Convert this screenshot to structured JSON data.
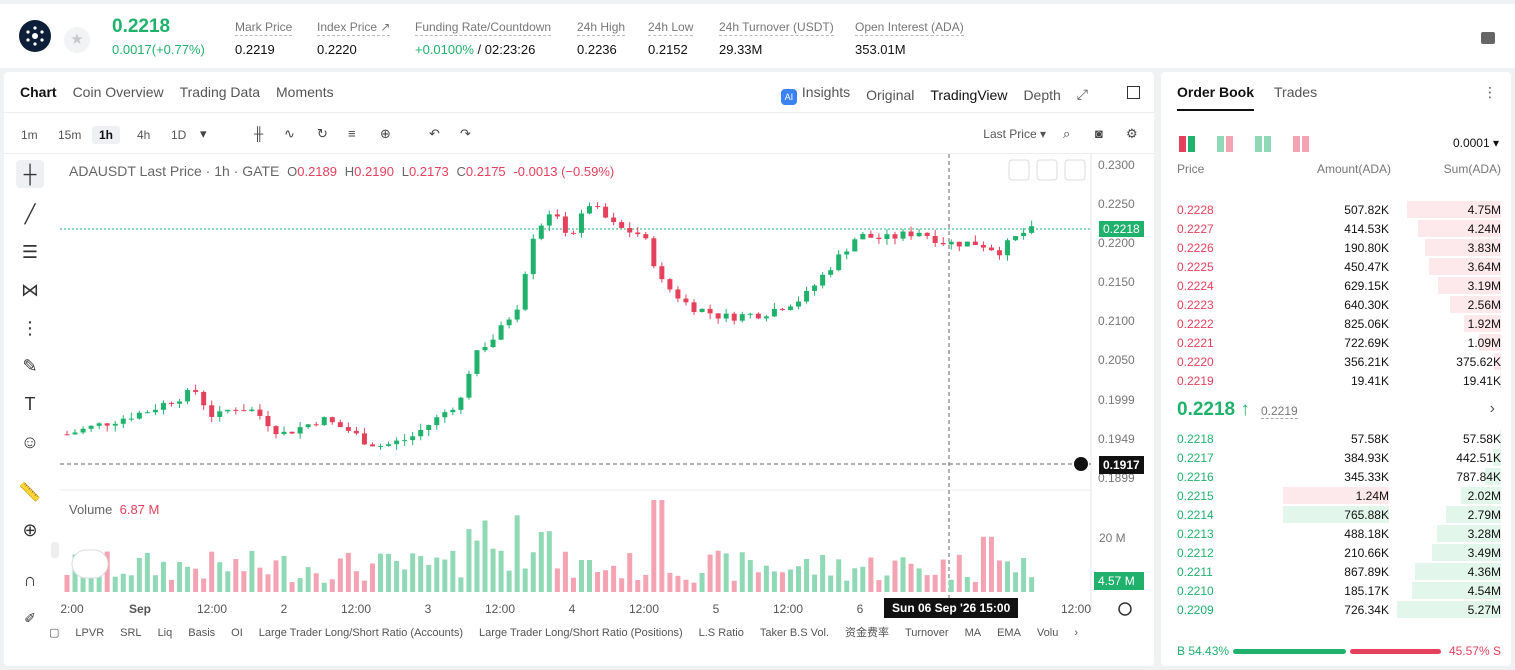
{
  "header": {
    "last_price": "0.2218",
    "change": "0.0017(+0.77%)",
    "stats": [
      {
        "label": "Mark Price",
        "value": "0.2219"
      },
      {
        "label": "Index Price ↗",
        "value": "0.2220"
      },
      {
        "label": "Funding Rate/Countdown",
        "value": "+0.0100%",
        "value2": " / 02:23:26"
      },
      {
        "label": "24h High",
        "value": "0.2236"
      },
      {
        "label": "24h Low",
        "value": "0.2152"
      },
      {
        "label": "24h Turnover (USDT)",
        "value": "29.33M"
      },
      {
        "label": "Open Interest (ADA)",
        "value": "353.01M"
      }
    ]
  },
  "chart_tabs": [
    "Chart",
    "Coin Overview",
    "Trading Data",
    "Moments"
  ],
  "chart_views": {
    "ai": "AI",
    "insights": "Insights",
    "original": "Original",
    "tradingview": "TradingView",
    "depth": "Depth"
  },
  "intervals": [
    "1m",
    "15m",
    "1h",
    "4h",
    "1D"
  ],
  "last_price_select": "Last Price",
  "legend": {
    "symbol": "ADAUSDT Last Price · 1h · GATE",
    "o_label": "O",
    "o": "0.2189",
    "h_label": "H",
    "h": "0.2190",
    "l_label": "L",
    "l": "0.2173",
    "c_label": "C",
    "c": "0.2175",
    "chg": "-0.0013 (−0.59%)"
  },
  "volume": {
    "label": "Volume",
    "value": "6.87 M",
    "axis_label": "20 M",
    "badge": "4.57 M"
  },
  "price_axis": [
    "0.2300",
    "0.2250",
    "0.2200",
    "0.2150",
    "0.2100",
    "0.2050",
    "0.1999",
    "0.1949",
    "0.1899"
  ],
  "price_badge": "0.2218",
  "cross_badge": "0.1917",
  "time_axis": [
    "2:00",
    "Sep",
    "12:00",
    "2",
    "12:00",
    "3",
    "12:00",
    "4",
    "12:00",
    "5",
    "12:00",
    "6",
    "12:00"
  ],
  "crosshair_time": "Sun 06 Sep '26   15:00",
  "bottom_indicators": [
    "LPVR",
    "SRL",
    "Liq",
    "Basis",
    "OI",
    "Large Trader Long/Short Ratio (Accounts)",
    "Large Trader Long/Short Ratio (Positions)",
    "L.S Ratio",
    "Taker B.S Vol.",
    "资金费率",
    "Turnover",
    "MA",
    "EMA",
    "Volu"
  ],
  "orderbook": {
    "tabs": [
      "Order Book",
      "Trades"
    ],
    "precision": "0.0001",
    "headers": {
      "price": "Price",
      "amount": "Amount(ADA)",
      "sum": "Sum(ADA)"
    },
    "asks": [
      {
        "price": "0.2228",
        "amount": "507.82K",
        "sum": "4.75M",
        "depth": 0.9
      },
      {
        "price": "0.2227",
        "amount": "414.53K",
        "sum": "4.24M",
        "depth": 0.8
      },
      {
        "price": "0.2226",
        "amount": "190.80K",
        "sum": "3.83M",
        "depth": 0.73
      },
      {
        "price": "0.2225",
        "amount": "450.47K",
        "sum": "3.64M",
        "depth": 0.69
      },
      {
        "price": "0.2224",
        "amount": "629.15K",
        "sum": "3.19M",
        "depth": 0.61
      },
      {
        "price": "0.2223",
        "amount": "640.30K",
        "sum": "2.56M",
        "depth": 0.49
      },
      {
        "price": "0.2222",
        "amount": "825.06K",
        "sum": "1.92M",
        "depth": 0.36
      },
      {
        "price": "0.2221",
        "amount": "722.69K",
        "sum": "1.09M",
        "depth": 0.21
      },
      {
        "price": "0.2220",
        "amount": "356.21K",
        "sum": "375.62K",
        "depth": 0.07
      },
      {
        "price": "0.2219",
        "amount": "19.41K",
        "sum": "19.41K",
        "depth": 0.01
      }
    ],
    "mid_price": "0.2218 ↑",
    "mid_mark": "0.2219",
    "bids": [
      {
        "price": "0.2218",
        "amount": "57.58K",
        "sum": "57.58K",
        "depth": 0.01,
        "abar": 0
      },
      {
        "price": "0.2217",
        "amount": "384.93K",
        "sum": "442.51K",
        "depth": 0.08,
        "abar": 0
      },
      {
        "price": "0.2216",
        "amount": "345.33K",
        "sum": "787.84K",
        "depth": 0.15,
        "abar": 0
      },
      {
        "price": "0.2215",
        "amount": "1.24M",
        "sum": "2.02M",
        "depth": 0.38,
        "abar": 1
      },
      {
        "price": "0.2214",
        "amount": "765.88K",
        "sum": "2.79M",
        "depth": 0.53,
        "abar": 2
      },
      {
        "price": "0.2213",
        "amount": "488.18K",
        "sum": "3.28M",
        "depth": 0.62,
        "abar": 0
      },
      {
        "price": "0.2212",
        "amount": "210.66K",
        "sum": "3.49M",
        "depth": 0.66,
        "abar": 0
      },
      {
        "price": "0.2211",
        "amount": "867.89K",
        "sum": "4.36M",
        "depth": 0.83,
        "abar": 0
      },
      {
        "price": "0.2210",
        "amount": "185.17K",
        "sum": "4.54M",
        "depth": 0.86,
        "abar": 0
      },
      {
        "price": "0.2209",
        "amount": "726.34K",
        "sum": "5.27M",
        "depth": 1.0,
        "abar": 0
      }
    ],
    "buy_ratio": "B 54.43%",
    "sell_ratio": "45.57% S",
    "buy_fraction": 0.5443
  },
  "colors": {
    "up": "#20b26c",
    "down": "#e5415d",
    "up_light": "#8fd9b6",
    "down_light": "#f3a3b2"
  }
}
